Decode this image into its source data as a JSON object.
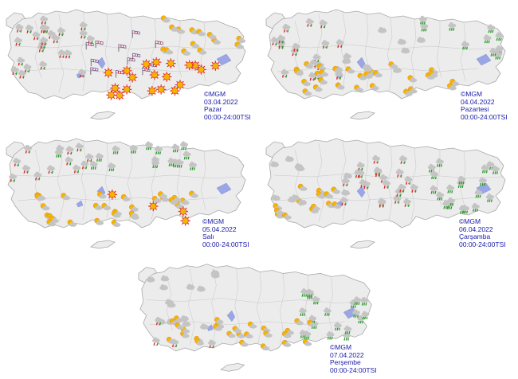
{
  "maps": [
    {
      "id": "day1",
      "copyright": "©MGM",
      "date": "03.04.2022",
      "weekday": "Pazar",
      "period": "00:00-24:00TSI",
      "symbols": [
        {
          "icon": "snow-rain-icon",
          "region": "west",
          "count": 24
        },
        {
          "icon": "windsock-icon",
          "region": "central",
          "count": 12
        },
        {
          "icon": "sun-icon",
          "region": "south-east",
          "count": 20
        },
        {
          "icon": "partly-cloudy-icon",
          "region": "north-east",
          "count": 14
        }
      ]
    },
    {
      "id": "day2",
      "copyright": "©MGM",
      "date": "04.04.2022",
      "weekday": "Pazartesi",
      "period": "00:00-24:00TSI",
      "symbols": [
        {
          "icon": "snow-rain-icon",
          "region": "west",
          "count": 20
        },
        {
          "icon": "rain-icon",
          "region": "north-east",
          "count": 10
        },
        {
          "icon": "partly-cloudy-icon",
          "region": "south",
          "count": 28
        },
        {
          "icon": "cloud-icon",
          "region": "central",
          "count": 8
        }
      ]
    },
    {
      "id": "day3",
      "copyright": "©MGM",
      "date": "05.04.2022",
      "weekday": "Salı",
      "period": "00:00-24:00TSI",
      "symbols": [
        {
          "icon": "snow-rain-icon",
          "region": "north-west",
          "count": 12
        },
        {
          "icon": "rain-icon",
          "region": "north",
          "count": 18
        },
        {
          "icon": "partly-cloudy-icon",
          "region": "south",
          "count": 30
        },
        {
          "icon": "sun-icon",
          "region": "south-east",
          "count": 4
        }
      ]
    },
    {
      "id": "day4",
      "copyright": "©MGM",
      "date": "06.04.2022",
      "weekday": "Çarşamba",
      "period": "00:00-24:00TSI",
      "symbols": [
        {
          "icon": "snow-rain-icon",
          "region": "central",
          "count": 22
        },
        {
          "icon": "rain-icon",
          "region": "east",
          "count": 20
        },
        {
          "icon": "partly-cloudy-icon",
          "region": "south-west",
          "count": 14
        },
        {
          "icon": "cloud-icon",
          "region": "west",
          "count": 10
        }
      ]
    },
    {
      "id": "day5",
      "copyright": "©MGM",
      "date": "07.04.2022",
      "weekday": "Perşembe",
      "period": "00:00-24:00TSI",
      "symbols": [
        {
          "icon": "cloud-icon",
          "region": "west",
          "count": 14
        },
        {
          "icon": "rain-icon",
          "region": "east",
          "count": 20
        },
        {
          "icon": "partly-cloudy-icon",
          "region": "south",
          "count": 26
        },
        {
          "icon": "snow-rain-icon",
          "region": "south-west",
          "count": 4
        }
      ]
    }
  ],
  "colors": {
    "land": "#ececec",
    "border": "#a8a8a8",
    "lake": "#9aa6e6",
    "caption": "#1a1aa8",
    "sun": "#f4b400",
    "sun_ring": "#e0302a",
    "cloud": "#c4c4c4",
    "rain_drop": "#2a9a2a",
    "snow_red": "#d42a2a",
    "windsock": "#6a5a9a"
  }
}
